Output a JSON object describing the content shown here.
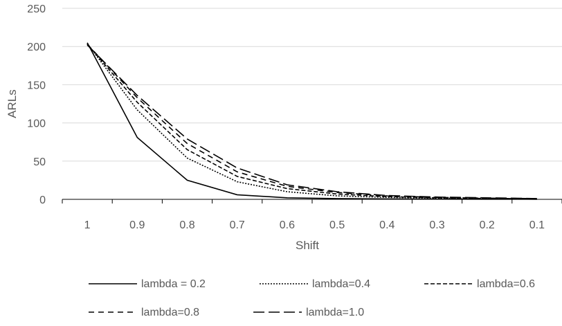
{
  "chart_data": {
    "type": "line",
    "xlabel": "Shift",
    "ylabel": "ARLs",
    "x": [
      "1",
      "0.9",
      "0.8",
      "0.7",
      "0.6",
      "0.5",
      "0.4",
      "0.3",
      "0.2",
      "0.1"
    ],
    "y_ticks": [
      0,
      50,
      100,
      150,
      200,
      250
    ],
    "ylim": [
      0,
      250
    ],
    "grid": true,
    "legend_position": "bottom",
    "series": [
      {
        "name": "lambda = 0.2",
        "dash": "solid",
        "values": [
          205,
          81,
          25,
          6,
          2,
          1,
          0.5,
          0.3,
          0.2,
          0.1
        ]
      },
      {
        "name": "lambda=0.4",
        "dash": "dotted",
        "values": [
          204,
          117,
          54,
          23,
          10,
          4.5,
          2.5,
          1.5,
          1,
          0.5
        ]
      },
      {
        "name": "lambda=0.6",
        "dash": "short-dash",
        "values": [
          203,
          127,
          65,
          30,
          14,
          7,
          3.5,
          2,
          1.2,
          0.8
        ]
      },
      {
        "name": "lambda=0.8",
        "dash": "dash",
        "values": [
          203,
          133,
          73,
          36,
          17,
          9,
          4.5,
          2.5,
          1.5,
          1
        ]
      },
      {
        "name": "lambda=1.0",
        "dash": "long-dash",
        "values": [
          202,
          136,
          79,
          41,
          19,
          10,
          5,
          3,
          2,
          1
        ]
      }
    ]
  }
}
